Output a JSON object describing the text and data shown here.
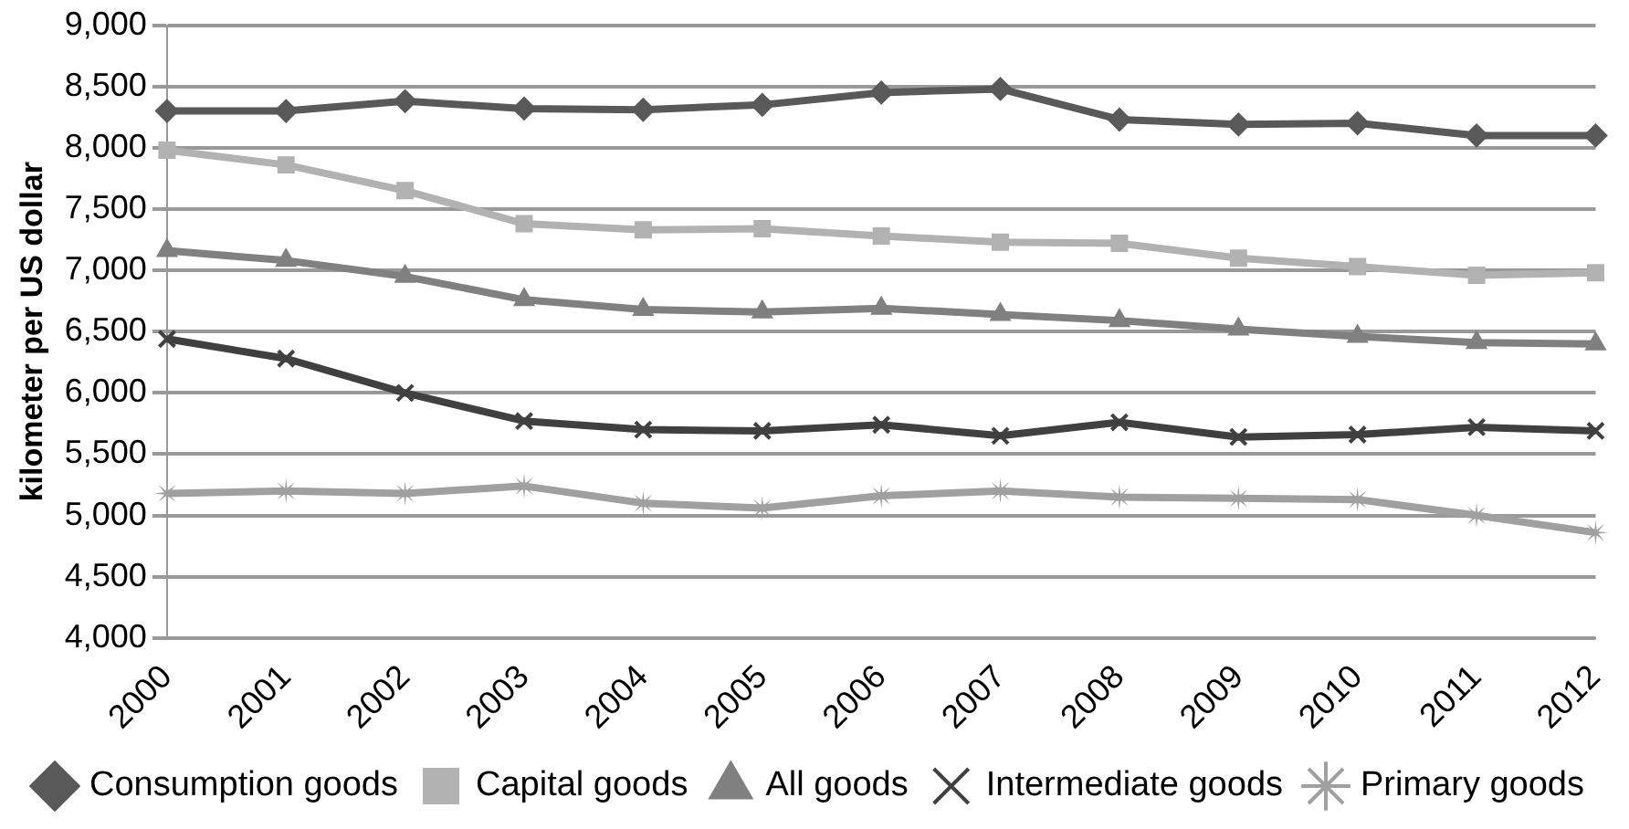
{
  "chart_data": {
    "type": "line",
    "ylabel": "kilometer per US dollar",
    "categories": [
      "2000",
      "2001",
      "2002",
      "2003",
      "2004",
      "2005",
      "2006",
      "2007",
      "2008",
      "2009",
      "2010",
      "2011",
      "2012"
    ],
    "series": [
      {
        "name": "Consumption goods",
        "color": "#595959",
        "marker": "diamond",
        "values": [
          8300,
          8300,
          8380,
          8320,
          8310,
          8350,
          8450,
          8480,
          8230,
          8190,
          8200,
          8100,
          8100
        ]
      },
      {
        "name": "Capital goods",
        "color": "#b2b2b2",
        "marker": "square",
        "values": [
          7980,
          7860,
          7650,
          7380,
          7330,
          7340,
          7280,
          7230,
          7220,
          7100,
          7030,
          6960,
          6980
        ]
      },
      {
        "name": "All goods",
        "color": "#808080",
        "marker": "triangle",
        "values": [
          7160,
          7080,
          6950,
          6760,
          6680,
          6660,
          6690,
          6640,
          6590,
          6520,
          6460,
          6410,
          6400
        ]
      },
      {
        "name": "Intermediate goods",
        "color": "#404040",
        "marker": "cross",
        "values": [
          6440,
          6280,
          6000,
          5770,
          5700,
          5690,
          5740,
          5650,
          5760,
          5640,
          5660,
          5720,
          5690
        ]
      },
      {
        "name": "Primary goods",
        "color": "#a0a0a0",
        "marker": "star",
        "values": [
          5180,
          5200,
          5180,
          5240,
          5100,
          5060,
          5160,
          5200,
          5150,
          5140,
          5130,
          5000,
          4860
        ]
      }
    ],
    "ylim": [
      4000,
      9000
    ],
    "yticks": [
      {
        "value": 4000,
        "label": "4,000"
      },
      {
        "value": 4500,
        "label": "4,500"
      },
      {
        "value": 5000,
        "label": "5,000"
      },
      {
        "value": 5500,
        "label": "5,500"
      },
      {
        "value": 6000,
        "label": "6,000"
      },
      {
        "value": 6500,
        "label": "6,500"
      },
      {
        "value": 7000,
        "label": "7,000"
      },
      {
        "value": 7500,
        "label": "7,500"
      },
      {
        "value": 8000,
        "label": "8,000"
      },
      {
        "value": 8500,
        "label": "8,500"
      },
      {
        "value": 9000,
        "label": "9,000"
      }
    ],
    "grid": "y",
    "legend": "bottom"
  }
}
